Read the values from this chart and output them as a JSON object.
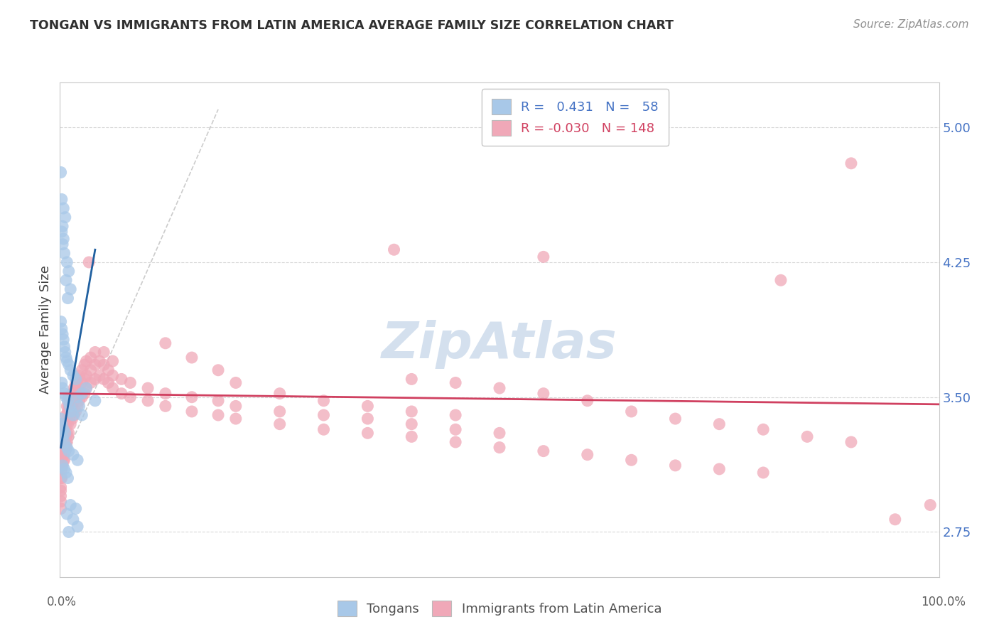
{
  "title": "TONGAN VS IMMIGRANTS FROM LATIN AMERICA AVERAGE FAMILY SIZE CORRELATION CHART",
  "source": "Source: ZipAtlas.com",
  "ylabel": "Average Family Size",
  "yticks": [
    2.75,
    3.5,
    4.25,
    5.0
  ],
  "xlim": [
    0.0,
    1.0
  ],
  "ylim": [
    2.5,
    5.25
  ],
  "legend_blue_r": "0.431",
  "legend_blue_n": "58",
  "legend_pink_r": "-0.030",
  "legend_pink_n": "148",
  "blue_color": "#a8c8e8",
  "pink_color": "#f0a8b8",
  "blue_line_color": "#2060a0",
  "pink_line_color": "#d04060",
  "title_color": "#303030",
  "source_color": "#909090",
  "axis_color": "#c8c8c8",
  "grid_color": "#d8d8d8",
  "watermark_color": "#b8cce4",
  "blue_dots": [
    [
      0.001,
      4.75
    ],
    [
      0.002,
      4.6
    ],
    [
      0.004,
      4.55
    ],
    [
      0.006,
      4.5
    ],
    [
      0.003,
      4.45
    ],
    [
      0.005,
      4.3
    ],
    [
      0.008,
      4.25
    ],
    [
      0.01,
      4.2
    ],
    [
      0.007,
      4.15
    ],
    [
      0.012,
      4.1
    ],
    [
      0.009,
      4.05
    ],
    [
      0.002,
      4.42
    ],
    [
      0.004,
      4.38
    ],
    [
      0.003,
      4.35
    ],
    [
      0.001,
      3.92
    ],
    [
      0.002,
      3.88
    ],
    [
      0.003,
      3.85
    ],
    [
      0.004,
      3.82
    ],
    [
      0.005,
      3.78
    ],
    [
      0.006,
      3.75
    ],
    [
      0.007,
      3.72
    ],
    [
      0.008,
      3.7
    ],
    [
      0.01,
      3.68
    ],
    [
      0.012,
      3.65
    ],
    [
      0.015,
      3.62
    ],
    [
      0.018,
      3.6
    ],
    [
      0.002,
      3.58
    ],
    [
      0.003,
      3.55
    ],
    [
      0.005,
      3.52
    ],
    [
      0.007,
      3.5
    ],
    [
      0.009,
      3.48
    ],
    [
      0.011,
      3.45
    ],
    [
      0.013,
      3.42
    ],
    [
      0.015,
      3.4
    ],
    [
      0.001,
      3.38
    ],
    [
      0.002,
      3.35
    ],
    [
      0.004,
      3.32
    ],
    [
      0.006,
      3.3
    ],
    [
      0.003,
      3.28
    ],
    [
      0.005,
      3.25
    ],
    [
      0.008,
      3.22
    ],
    [
      0.01,
      3.2
    ],
    [
      0.02,
      3.5
    ],
    [
      0.025,
      3.52
    ],
    [
      0.03,
      3.55
    ],
    [
      0.04,
      3.48
    ],
    [
      0.015,
      3.18
    ],
    [
      0.02,
      3.15
    ],
    [
      0.012,
      2.9
    ],
    [
      0.018,
      2.88
    ],
    [
      0.008,
      2.85
    ],
    [
      0.01,
      2.75
    ],
    [
      0.015,
      2.82
    ],
    [
      0.02,
      2.78
    ],
    [
      0.005,
      3.1
    ],
    [
      0.003,
      3.12
    ],
    [
      0.007,
      3.08
    ],
    [
      0.009,
      3.05
    ],
    [
      0.025,
      3.4
    ],
    [
      0.022,
      3.45
    ]
  ],
  "pink_dots": [
    [
      0.001,
      3.18
    ],
    [
      0.001,
      3.12
    ],
    [
      0.001,
      3.05
    ],
    [
      0.001,
      3.0
    ],
    [
      0.001,
      2.98
    ],
    [
      0.001,
      2.95
    ],
    [
      0.001,
      2.92
    ],
    [
      0.001,
      2.88
    ],
    [
      0.001,
      3.22
    ],
    [
      0.001,
      3.28
    ],
    [
      0.001,
      3.32
    ],
    [
      0.002,
      3.15
    ],
    [
      0.002,
      3.1
    ],
    [
      0.002,
      3.05
    ],
    [
      0.002,
      3.2
    ],
    [
      0.002,
      3.25
    ],
    [
      0.002,
      3.3
    ],
    [
      0.002,
      3.35
    ],
    [
      0.003,
      3.18
    ],
    [
      0.003,
      3.22
    ],
    [
      0.003,
      3.28
    ],
    [
      0.003,
      3.12
    ],
    [
      0.004,
      3.2
    ],
    [
      0.004,
      3.15
    ],
    [
      0.004,
      3.25
    ],
    [
      0.004,
      3.3
    ],
    [
      0.005,
      3.18
    ],
    [
      0.005,
      3.22
    ],
    [
      0.005,
      3.28
    ],
    [
      0.005,
      3.15
    ],
    [
      0.006,
      3.2
    ],
    [
      0.006,
      3.25
    ],
    [
      0.006,
      3.3
    ],
    [
      0.006,
      3.35
    ],
    [
      0.007,
      3.22
    ],
    [
      0.007,
      3.28
    ],
    [
      0.007,
      3.35
    ],
    [
      0.007,
      3.4
    ],
    [
      0.008,
      3.25
    ],
    [
      0.008,
      3.3
    ],
    [
      0.008,
      3.38
    ],
    [
      0.008,
      3.45
    ],
    [
      0.009,
      3.28
    ],
    [
      0.009,
      3.35
    ],
    [
      0.009,
      3.42
    ],
    [
      0.01,
      3.3
    ],
    [
      0.01,
      3.38
    ],
    [
      0.01,
      3.45
    ],
    [
      0.01,
      3.5
    ],
    [
      0.012,
      3.35
    ],
    [
      0.012,
      3.42
    ],
    [
      0.012,
      3.48
    ],
    [
      0.014,
      3.38
    ],
    [
      0.014,
      3.45
    ],
    [
      0.014,
      3.52
    ],
    [
      0.016,
      3.4
    ],
    [
      0.016,
      3.48
    ],
    [
      0.016,
      3.55
    ],
    [
      0.018,
      3.42
    ],
    [
      0.018,
      3.5
    ],
    [
      0.018,
      3.58
    ],
    [
      0.02,
      3.45
    ],
    [
      0.02,
      3.52
    ],
    [
      0.02,
      3.6
    ],
    [
      0.022,
      3.48
    ],
    [
      0.022,
      3.55
    ],
    [
      0.022,
      3.62
    ],
    [
      0.025,
      3.5
    ],
    [
      0.025,
      3.58
    ],
    [
      0.025,
      3.65
    ],
    [
      0.028,
      3.52
    ],
    [
      0.028,
      3.6
    ],
    [
      0.028,
      3.68
    ],
    [
      0.03,
      3.55
    ],
    [
      0.03,
      3.62
    ],
    [
      0.03,
      3.7
    ],
    [
      0.035,
      3.58
    ],
    [
      0.035,
      3.65
    ],
    [
      0.035,
      3.72
    ],
    [
      0.04,
      3.6
    ],
    [
      0.04,
      3.68
    ],
    [
      0.04,
      3.75
    ],
    [
      0.045,
      3.62
    ],
    [
      0.045,
      3.7
    ],
    [
      0.05,
      3.6
    ],
    [
      0.05,
      3.68
    ],
    [
      0.05,
      3.75
    ],
    [
      0.055,
      3.58
    ],
    [
      0.055,
      3.65
    ],
    [
      0.06,
      3.55
    ],
    [
      0.06,
      3.62
    ],
    [
      0.06,
      3.7
    ],
    [
      0.07,
      3.52
    ],
    [
      0.07,
      3.6
    ],
    [
      0.08,
      3.5
    ],
    [
      0.08,
      3.58
    ],
    [
      0.1,
      3.48
    ],
    [
      0.1,
      3.55
    ],
    [
      0.12,
      3.45
    ],
    [
      0.12,
      3.52
    ],
    [
      0.15,
      3.42
    ],
    [
      0.15,
      3.5
    ],
    [
      0.18,
      3.4
    ],
    [
      0.18,
      3.48
    ],
    [
      0.2,
      3.38
    ],
    [
      0.2,
      3.45
    ],
    [
      0.25,
      3.35
    ],
    [
      0.25,
      3.42
    ],
    [
      0.3,
      3.32
    ],
    [
      0.3,
      3.4
    ],
    [
      0.35,
      3.3
    ],
    [
      0.35,
      3.38
    ],
    [
      0.4,
      3.28
    ],
    [
      0.4,
      3.35
    ],
    [
      0.45,
      3.25
    ],
    [
      0.45,
      3.32
    ],
    [
      0.5,
      3.22
    ],
    [
      0.5,
      3.3
    ],
    [
      0.033,
      4.25
    ],
    [
      0.38,
      4.32
    ],
    [
      0.55,
      4.28
    ],
    [
      0.82,
      4.15
    ],
    [
      0.9,
      4.8
    ],
    [
      0.95,
      2.82
    ],
    [
      0.99,
      2.9
    ],
    [
      0.6,
      3.48
    ],
    [
      0.65,
      3.42
    ],
    [
      0.7,
      3.38
    ],
    [
      0.75,
      3.35
    ],
    [
      0.8,
      3.32
    ],
    [
      0.85,
      3.28
    ],
    [
      0.9,
      3.25
    ],
    [
      0.55,
      3.52
    ],
    [
      0.5,
      3.55
    ],
    [
      0.45,
      3.58
    ],
    [
      0.4,
      3.6
    ],
    [
      0.55,
      3.2
    ],
    [
      0.6,
      3.18
    ],
    [
      0.65,
      3.15
    ],
    [
      0.7,
      3.12
    ],
    [
      0.75,
      3.1
    ],
    [
      0.8,
      3.08
    ],
    [
      0.12,
      3.8
    ],
    [
      0.15,
      3.72
    ],
    [
      0.18,
      3.65
    ],
    [
      0.2,
      3.58
    ],
    [
      0.25,
      3.52
    ],
    [
      0.3,
      3.48
    ],
    [
      0.35,
      3.45
    ],
    [
      0.4,
      3.42
    ],
    [
      0.45,
      3.4
    ]
  ]
}
